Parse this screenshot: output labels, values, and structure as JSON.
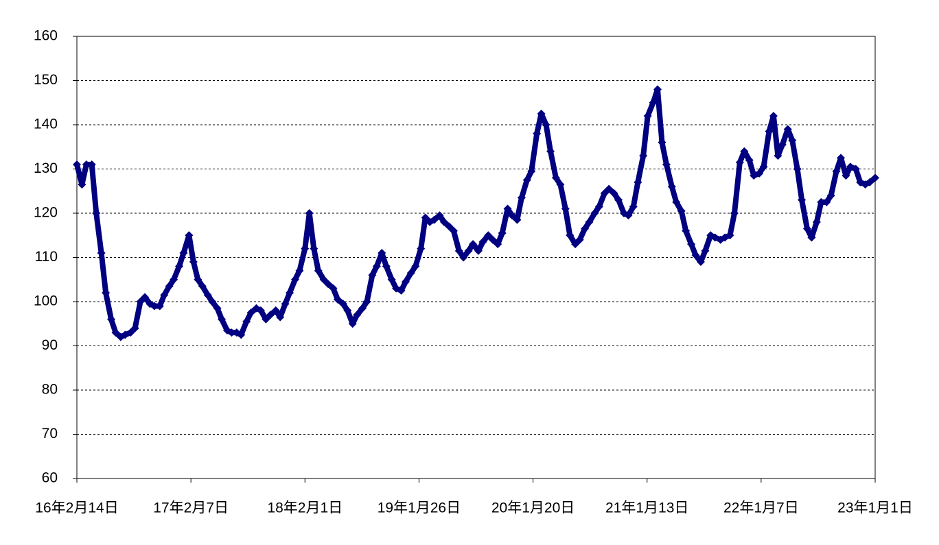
{
  "chart_data": {
    "type": "line",
    "x": [
      "2016-02-14",
      "2016-03-01",
      "2016-03-15",
      "2016-04-01",
      "2016-04-15",
      "2016-05-01",
      "2016-05-15",
      "2016-06-01",
      "2016-06-15",
      "2016-07-01",
      "2016-07-15",
      "2016-08-01",
      "2016-08-15",
      "2016-09-01",
      "2016-09-15",
      "2016-10-01",
      "2016-10-15",
      "2016-11-01",
      "2016-11-15",
      "2016-12-01",
      "2016-12-15",
      "2017-01-01",
      "2017-01-15",
      "2017-02-01",
      "2017-02-15",
      "2017-03-01",
      "2017-03-15",
      "2017-04-01",
      "2017-04-15",
      "2017-05-01",
      "2017-05-15",
      "2017-06-01",
      "2017-06-15",
      "2017-07-01",
      "2017-07-15",
      "2017-08-01",
      "2017-08-15",
      "2017-09-01",
      "2017-09-15",
      "2017-10-01",
      "2017-10-15",
      "2017-11-01",
      "2017-11-15",
      "2017-12-01",
      "2017-12-15",
      "2018-01-01",
      "2018-01-15",
      "2018-02-01",
      "2018-02-15",
      "2018-03-01",
      "2018-03-15",
      "2018-04-01",
      "2018-04-15",
      "2018-05-01",
      "2018-05-15",
      "2018-06-01",
      "2018-06-15",
      "2018-07-01",
      "2018-07-15",
      "2018-08-01",
      "2018-08-15",
      "2018-09-01",
      "2018-09-15",
      "2018-10-01",
      "2018-10-15",
      "2018-11-01",
      "2018-11-15",
      "2018-12-01",
      "2018-12-15",
      "2019-01-01",
      "2019-01-15",
      "2019-02-01",
      "2019-02-15",
      "2019-03-01",
      "2019-03-15",
      "2019-04-01",
      "2019-04-15",
      "2019-05-01",
      "2019-05-15",
      "2019-06-01",
      "2019-06-15",
      "2019-07-01",
      "2019-07-15",
      "2019-08-01",
      "2019-08-15",
      "2019-09-01",
      "2019-09-15",
      "2019-10-01",
      "2019-10-15",
      "2019-11-01",
      "2019-11-15",
      "2019-12-01",
      "2019-12-15",
      "2020-01-01",
      "2020-01-15",
      "2020-02-01",
      "2020-02-15",
      "2020-03-01",
      "2020-03-15",
      "2020-04-01",
      "2020-04-15",
      "2020-05-01",
      "2020-05-15",
      "2020-06-01",
      "2020-06-15",
      "2020-07-01",
      "2020-07-15",
      "2020-08-01",
      "2020-08-15",
      "2020-09-01",
      "2020-09-15",
      "2020-10-01",
      "2020-10-15",
      "2020-11-01",
      "2020-11-15",
      "2020-12-01",
      "2020-12-15",
      "2021-01-01",
      "2021-01-15",
      "2021-02-01",
      "2021-02-15",
      "2021-03-01",
      "2021-03-15",
      "2021-04-01",
      "2021-04-15",
      "2021-05-01",
      "2021-05-15",
      "2021-06-01",
      "2021-06-15",
      "2021-07-01",
      "2021-07-15",
      "2021-08-01",
      "2021-08-15",
      "2021-09-01",
      "2021-09-15",
      "2021-10-01",
      "2021-10-15",
      "2021-11-01",
      "2021-11-15",
      "2021-12-01",
      "2021-12-15",
      "2022-01-01",
      "2022-01-15",
      "2022-02-01",
      "2022-02-15",
      "2022-03-01",
      "2022-03-15",
      "2022-04-01",
      "2022-04-15",
      "2022-05-01",
      "2022-05-15",
      "2022-06-01",
      "2022-06-15",
      "2022-07-01",
      "2022-07-15",
      "2022-08-01",
      "2022-08-15",
      "2022-09-01",
      "2022-09-15",
      "2022-10-01",
      "2022-10-15",
      "2022-11-01",
      "2022-11-15",
      "2022-12-01",
      "2022-12-15",
      "2023-01-01"
    ],
    "series": [
      {
        "color": "#000080",
        "values": [
          131,
          126.5,
          131,
          131,
          120,
          111,
          102,
          96,
          93,
          92,
          92.5,
          93,
          94,
          100,
          101,
          99.5,
          99,
          99,
          101.5,
          103.5,
          105,
          108,
          111,
          115,
          109,
          105,
          103.5,
          101.5,
          100,
          98.5,
          96,
          93.5,
          93,
          93,
          92.5,
          95.5,
          97.5,
          98.5,
          98,
          96,
          97,
          98,
          96.5,
          99.5,
          102,
          105,
          107,
          112,
          120,
          112,
          107,
          105,
          104,
          103,
          100.5,
          99.5,
          98,
          95,
          97,
          98.5,
          100,
          106,
          108,
          111,
          108,
          105,
          103,
          102.5,
          104.5,
          106.5,
          108,
          112,
          119,
          118,
          118.5,
          119.5,
          118,
          117,
          116,
          111.5,
          110,
          111.5,
          113,
          111.5,
          113.5,
          115,
          114,
          113,
          115.5,
          121,
          119.5,
          118.5,
          123.5,
          127.5,
          129.5,
          138,
          142.5,
          140,
          134,
          128,
          126.5,
          121,
          115,
          113,
          114,
          116.5,
          118,
          120,
          121.5,
          124.5,
          125.5,
          124.5,
          123,
          120,
          119.5,
          121.5,
          127,
          133,
          142,
          145,
          148,
          136,
          131,
          126,
          122.5,
          120.5,
          116,
          113,
          110.5,
          109,
          111.5,
          115,
          114.5,
          114,
          114.5,
          115,
          120,
          131.5,
          134,
          132,
          128.5,
          129,
          130.5,
          138.5,
          142,
          133,
          135.5,
          139,
          136.5,
          130,
          123,
          116.5,
          114.5,
          118,
          122.5,
          122.5,
          124,
          129.5,
          132.5,
          128.5,
          130.5,
          130,
          127,
          126.5,
          127,
          128
        ]
      }
    ],
    "xlim": [
      "2016-02-14",
      "2023-01-01"
    ],
    "xticks": [
      {
        "value": "2016-02-14",
        "label": "16年2月14日"
      },
      {
        "value": "2017-02-07",
        "label": "17年2月7日"
      },
      {
        "value": "2018-02-01",
        "label": "18年2月1日"
      },
      {
        "value": "2019-01-26",
        "label": "19年1月26日"
      },
      {
        "value": "2020-01-20",
        "label": "20年1月20日"
      },
      {
        "value": "2021-01-13",
        "label": "21年1月13日"
      },
      {
        "value": "2022-01-07",
        "label": "22年1月7日"
      },
      {
        "value": "2023-01-01",
        "label": "23年1月1日"
      }
    ],
    "ylim": [
      60,
      160
    ],
    "yticks": [
      60,
      70,
      80,
      90,
      100,
      110,
      120,
      130,
      140,
      150,
      160
    ],
    "grid": true
  }
}
